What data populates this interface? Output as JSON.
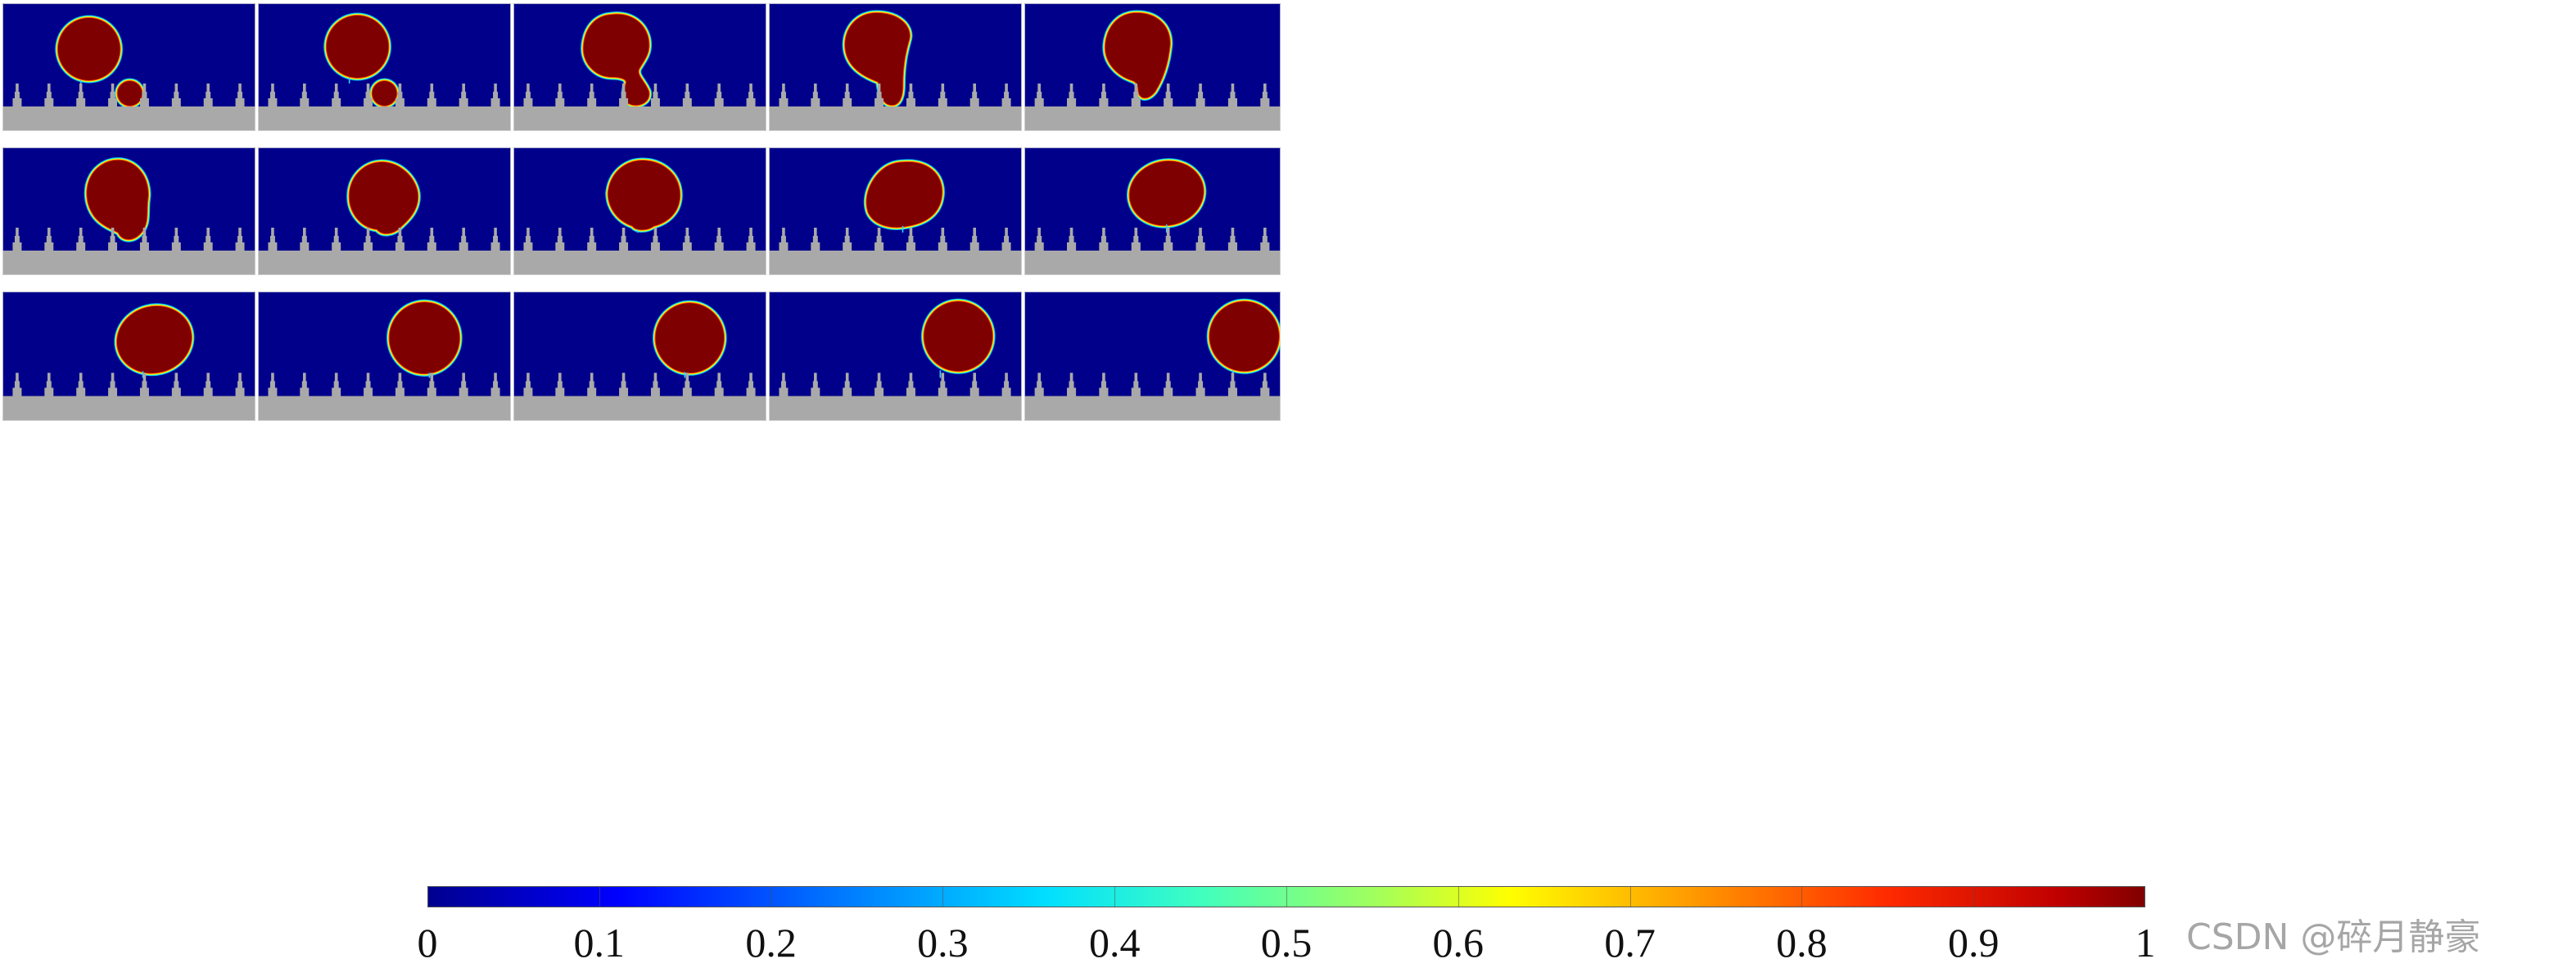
{
  "figure": {
    "grid": {
      "rows": 3,
      "cols": 5
    },
    "colors": {
      "background_fluid": "#00008b",
      "droplet": "#7f0000",
      "substrate": "#a9a9a9",
      "frame_border": "#d9d9d9"
    },
    "frames": [
      {
        "stage": 1,
        "row": 0,
        "col": 0,
        "shape": "two-droplets"
      },
      {
        "stage": 2,
        "row": 0,
        "col": 1,
        "shape": "two-droplets"
      },
      {
        "stage": 3,
        "row": 0,
        "col": 2,
        "shape": "coalescing-neck"
      },
      {
        "stage": 4,
        "row": 0,
        "col": 3,
        "shape": "elongated-drop"
      },
      {
        "stage": 5,
        "row": 0,
        "col": 4,
        "shape": "elongated-drop"
      },
      {
        "stage": 6,
        "row": 1,
        "col": 0,
        "shape": "lifting-drop"
      },
      {
        "stage": 7,
        "row": 1,
        "col": 1,
        "shape": "lifting-drop"
      },
      {
        "stage": 8,
        "row": 1,
        "col": 2,
        "shape": "rounding-drop"
      },
      {
        "stage": 9,
        "row": 1,
        "col": 3,
        "shape": "rounding-drop"
      },
      {
        "stage": 10,
        "row": 1,
        "col": 4,
        "shape": "oval-drop"
      },
      {
        "stage": 11,
        "row": 2,
        "col": 0,
        "shape": "oval-drop"
      },
      {
        "stage": 12,
        "row": 2,
        "col": 1,
        "shape": "round-drop"
      },
      {
        "stage": 13,
        "row": 2,
        "col": 2,
        "shape": "round-drop"
      },
      {
        "stage": 14,
        "row": 2,
        "col": 3,
        "shape": "round-drop"
      },
      {
        "stage": 15,
        "row": 2,
        "col": 4,
        "shape": "round-drop"
      }
    ]
  },
  "colorbar": {
    "colormap": "jet",
    "min": 0,
    "max": 1,
    "tick_labels": [
      "0",
      "0.1",
      "0.2",
      "0.3",
      "0.4",
      "0.5",
      "0.6",
      "0.7",
      "0.8",
      "0.9",
      "1"
    ]
  },
  "watermark": {
    "text": "CSDN @碎月静豪"
  }
}
